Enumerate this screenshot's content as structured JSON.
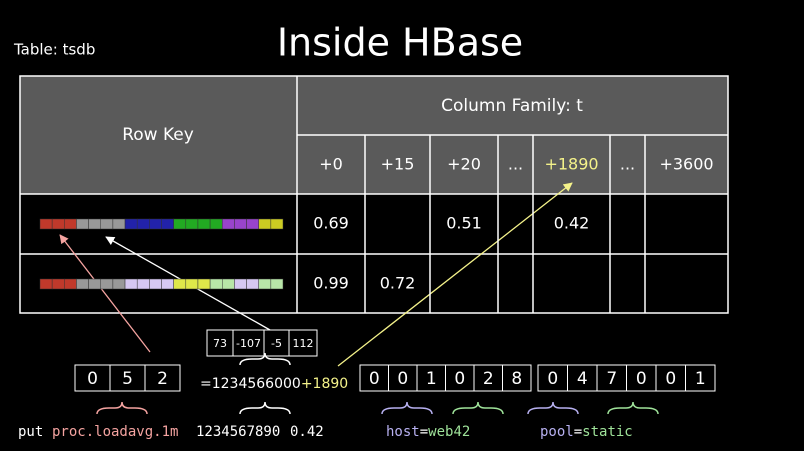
{
  "header": {
    "table_label": "Table: tsdb",
    "title": "Inside HBase"
  },
  "table": {
    "row_key_header": "Row Key",
    "column_family": "Column Family: t",
    "qualifiers": [
      "+0",
      "+15",
      "+20",
      "...",
      "+1890",
      "...",
      "+3600"
    ],
    "rows": [
      [
        "0.69",
        null,
        "0.51",
        null,
        "0.42",
        null,
        null
      ],
      [
        "0.99",
        "0.72",
        null,
        null,
        null,
        null,
        null
      ]
    ]
  },
  "byte_box": [
    "73",
    "-107",
    "-5",
    "112"
  ],
  "metric_uid": [
    "0",
    "5",
    "2"
  ],
  "base_time": "=1234566000",
  "offset": "+1890",
  "tag_uids": [
    [
      "0",
      "0",
      "1",
      "0",
      "2",
      "8"
    ],
    [
      "0",
      "4",
      "7",
      "0",
      "0",
      "1"
    ]
  ],
  "command": {
    "put": "put",
    "metric": "proc.loadavg.1m",
    "timestamp": "1234567890",
    "value": "0.42",
    "tags": [
      {
        "key": "host",
        "eq": "=",
        "value": "web42"
      },
      {
        "key": "pool",
        "eq": "=",
        "value": "static"
      }
    ]
  }
}
